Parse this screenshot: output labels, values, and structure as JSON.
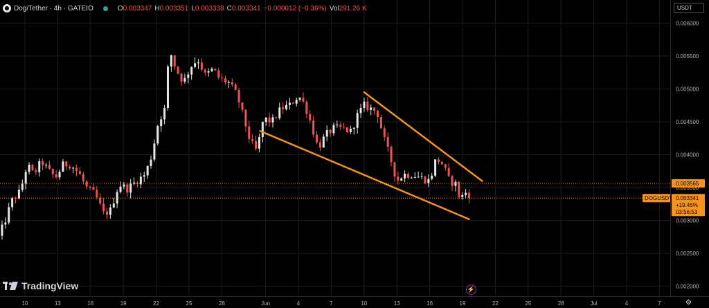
{
  "header": {
    "title": "Dog/Tether · 4h · GATEIO",
    "ohlc": [
      {
        "k": "O",
        "v": "0.003347"
      },
      {
        "k": "H",
        "v": "0.003351"
      },
      {
        "k": "L",
        "v": "0.003338"
      },
      {
        "k": "C",
        "v": "0.003341"
      },
      {
        "k": "",
        "v": "−0.000012 (−0.36%)"
      },
      {
        "k": "Vol",
        "v": "291.26 K"
      }
    ]
  },
  "currency_label": "USDT",
  "watermark": "TradingView",
  "colors": {
    "up": "#26a69a",
    "down": "#ef5350",
    "candle_up": "#e6e6e6",
    "candle_down": "#ef5350",
    "trend": "#f7931a",
    "bg": "#000000",
    "grid": "#1c1c1c"
  },
  "chart_data": {
    "type": "candlestick",
    "symbol": "DOGUSDT",
    "interval": "4h",
    "exchange": "GATEIO",
    "y_ticks": [
      0.002,
      0.0025,
      0.003,
      0.0035,
      0.004,
      0.0045,
      0.005,
      0.0055,
      0.006
    ],
    "y_tick_labels": [
      "0.002000",
      "0.002500",
      "0.003000",
      "0.003500",
      "0.004000",
      "0.004500",
      "0.005000",
      "0.005500",
      "0.006000"
    ],
    "ylim": [
      0.00185,
      0.00635
    ],
    "x_ticks": [
      {
        "label": "10",
        "day": 10
      },
      {
        "label": "13",
        "day": 13
      },
      {
        "label": "16",
        "day": 16
      },
      {
        "label": "19",
        "day": 19
      },
      {
        "label": "22",
        "day": 22
      },
      {
        "label": "25",
        "day": 25
      },
      {
        "label": "28",
        "day": 28
      },
      {
        "label": "Jun",
        "day": 32
      },
      {
        "label": "4",
        "day": 35
      },
      {
        "label": "7",
        "day": 38
      },
      {
        "label": "10",
        "day": 41
      },
      {
        "label": "13",
        "day": 44
      },
      {
        "label": "16",
        "day": 47
      },
      {
        "label": "19",
        "day": 50
      },
      {
        "label": "22",
        "day": 53
      },
      {
        "label": "25",
        "day": 56
      },
      {
        "label": "28",
        "day": 59
      },
      {
        "label": "Jul",
        "day": 62
      },
      {
        "label": "4",
        "day": 65
      },
      {
        "label": "7",
        "day": 68
      }
    ],
    "price_path": [
      [
        7.6,
        0.00275
      ],
      [
        8.2,
        0.003
      ],
      [
        8.8,
        0.0033
      ],
      [
        9.6,
        0.00345
      ],
      [
        10.2,
        0.00385
      ],
      [
        10.8,
        0.0037
      ],
      [
        11.5,
        0.0039
      ],
      [
        12.2,
        0.00375
      ],
      [
        12.8,
        0.00365
      ],
      [
        13.5,
        0.00385
      ],
      [
        14.2,
        0.00385
      ],
      [
        15.0,
        0.0037
      ],
      [
        15.6,
        0.0035
      ],
      [
        16.4,
        0.0034
      ],
      [
        17.2,
        0.0031
      ],
      [
        17.8,
        0.00315
      ],
      [
        18.6,
        0.00355
      ],
      [
        19.4,
        0.00348
      ],
      [
        20.2,
        0.0036
      ],
      [
        21.0,
        0.0037
      ],
      [
        21.6,
        0.004
      ],
      [
        22.2,
        0.0045
      ],
      [
        22.8,
        0.0047
      ],
      [
        23.2,
        0.0056
      ],
      [
        23.8,
        0.0053
      ],
      [
        24.5,
        0.0051
      ],
      [
        25.2,
        0.00535
      ],
      [
        25.8,
        0.00545
      ],
      [
        26.5,
        0.0052
      ],
      [
        27.2,
        0.0053
      ],
      [
        27.8,
        0.00515
      ],
      [
        28.6,
        0.0051
      ],
      [
        29.4,
        0.0049
      ],
      [
        30.0,
        0.00455
      ],
      [
        30.6,
        0.0042
      ],
      [
        31.2,
        0.00405
      ],
      [
        31.8,
        0.00455
      ],
      [
        32.6,
        0.0045
      ],
      [
        33.4,
        0.0047
      ],
      [
        34.2,
        0.00475
      ],
      [
        35.0,
        0.0049
      ],
      [
        35.6,
        0.00475
      ],
      [
        36.2,
        0.00445
      ],
      [
        36.8,
        0.0041
      ],
      [
        37.5,
        0.0043
      ],
      [
        38.2,
        0.0044
      ],
      [
        39.0,
        0.0044
      ],
      [
        39.8,
        0.00435
      ],
      [
        40.4,
        0.0046
      ],
      [
        41.0,
        0.00475
      ],
      [
        41.6,
        0.0047
      ],
      [
        42.2,
        0.00465
      ],
      [
        42.8,
        0.00425
      ],
      [
        43.4,
        0.00395
      ],
      [
        44.0,
        0.0036
      ],
      [
        44.6,
        0.0037
      ],
      [
        45.4,
        0.0037
      ],
      [
        46.2,
        0.00365
      ],
      [
        47.0,
        0.0036
      ],
      [
        47.6,
        0.00395
      ],
      [
        48.2,
        0.00385
      ],
      [
        48.8,
        0.0036
      ],
      [
        49.4,
        0.00355
      ],
      [
        49.8,
        0.0033
      ],
      [
        50.2,
        0.00345
      ],
      [
        50.6,
        0.00334
      ]
    ],
    "candle_count": 140,
    "trendlines": [
      {
        "name": "upper",
        "from": [
          41.0,
          0.00495
        ],
        "to": [
          51.8,
          0.0036
        ]
      },
      {
        "name": "lower",
        "from": [
          31.5,
          0.00436
        ],
        "to": [
          50.6,
          0.00302
        ]
      }
    ],
    "price_lines": [
      {
        "value": 0.003565,
        "label": "0.003565",
        "style": "dotted",
        "color": "#f7931a"
      },
      {
        "value": 0.003341,
        "label": "0.003341",
        "style": "dotted",
        "color": "#f7931a"
      }
    ],
    "last_price": {
      "symbol": "DOGUSDT",
      "value": "0.003341",
      "change": "+19.45%",
      "countdown": "03:56:53"
    }
  }
}
